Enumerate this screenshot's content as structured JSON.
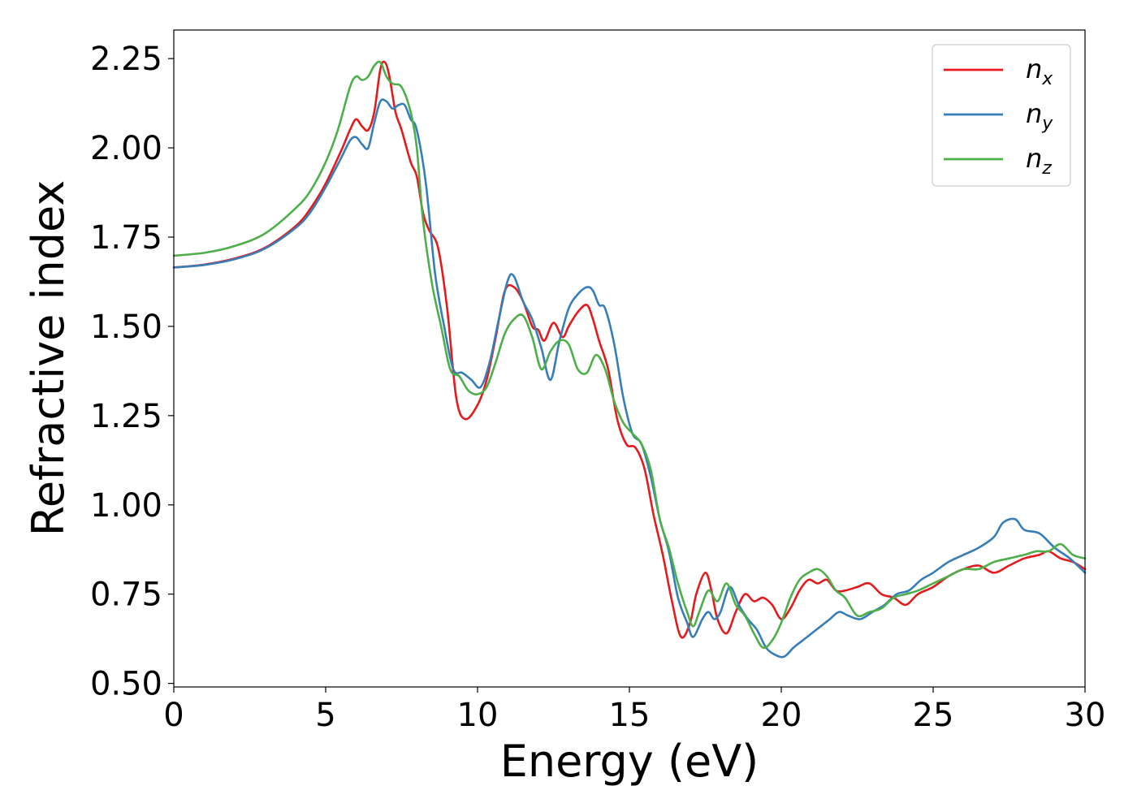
{
  "chart_data": {
    "type": "line",
    "xlabel": "Energy (eV)",
    "ylabel": "Refractive index",
    "xlim": [
      0,
      30
    ],
    "ylim": [
      0.49,
      2.33
    ],
    "xticks": [
      0,
      5,
      10,
      15,
      20,
      25,
      30
    ],
    "xtick_labels": [
      "0",
      "5",
      "10",
      "15",
      "20",
      "25",
      "30"
    ],
    "yticks": [
      0.5,
      0.75,
      1.0,
      1.25,
      1.5,
      1.75,
      2.0,
      2.25
    ],
    "ytick_labels": [
      "0.50",
      "0.75",
      "1.00",
      "1.25",
      "1.50",
      "1.75",
      "2.00",
      "2.25"
    ],
    "grid": false,
    "legend_position": "top-right",
    "series": [
      {
        "name": "n",
        "subscript": "x",
        "color": "#e41a1c",
        "x": [
          0,
          1,
          2,
          3,
          4,
          4.5,
          5,
          5.5,
          5.8,
          6.0,
          6.2,
          6.4,
          6.6,
          6.8,
          6.95,
          7.1,
          7.3,
          7.5,
          7.8,
          8.0,
          8.2,
          8.4,
          8.7,
          9.0,
          9.3,
          9.6,
          10.0,
          10.3,
          10.6,
          10.9,
          11.2,
          11.5,
          11.8,
          12.0,
          12.2,
          12.5,
          12.8,
          13.0,
          13.3,
          13.6,
          13.8,
          14.0,
          14.3,
          14.6,
          14.9,
          15.2,
          15.5,
          15.8,
          16.1,
          16.4,
          16.7,
          17.0,
          17.2,
          17.5,
          17.7,
          17.9,
          18.2,
          18.5,
          18.8,
          19.1,
          19.4,
          19.7,
          20.0,
          20.3,
          20.6,
          20.9,
          21.2,
          21.5,
          21.8,
          22.1,
          22.5,
          22.9,
          23.3,
          23.7,
          24.1,
          24.5,
          25.0,
          25.5,
          26.0,
          26.5,
          27.0,
          27.5,
          28.0,
          28.5,
          28.8,
          29.2,
          29.6,
          30.0
        ],
        "y": [
          1.665,
          1.673,
          1.69,
          1.72,
          1.78,
          1.83,
          1.9,
          1.99,
          2.05,
          2.08,
          2.06,
          2.05,
          2.1,
          2.22,
          2.24,
          2.2,
          2.1,
          2.05,
          1.96,
          1.92,
          1.82,
          1.77,
          1.72,
          1.55,
          1.3,
          1.24,
          1.28,
          1.35,
          1.47,
          1.6,
          1.61,
          1.57,
          1.5,
          1.49,
          1.46,
          1.51,
          1.47,
          1.5,
          1.54,
          1.56,
          1.52,
          1.46,
          1.38,
          1.24,
          1.17,
          1.16,
          1.1,
          0.97,
          0.86,
          0.73,
          0.63,
          0.67,
          0.75,
          0.81,
          0.76,
          0.68,
          0.64,
          0.7,
          0.75,
          0.73,
          0.74,
          0.72,
          0.68,
          0.71,
          0.76,
          0.79,
          0.78,
          0.79,
          0.76,
          0.76,
          0.77,
          0.78,
          0.75,
          0.74,
          0.72,
          0.75,
          0.77,
          0.8,
          0.82,
          0.83,
          0.81,
          0.83,
          0.85,
          0.86,
          0.87,
          0.85,
          0.84,
          0.82
        ]
      },
      {
        "name": "n",
        "subscript": "y",
        "color": "#377eb8",
        "x": [
          0,
          1,
          2,
          3,
          4,
          4.5,
          5,
          5.5,
          5.8,
          6.0,
          6.2,
          6.4,
          6.6,
          6.8,
          7.0,
          7.2,
          7.4,
          7.6,
          7.8,
          8.0,
          8.3,
          8.6,
          8.9,
          9.2,
          9.5,
          9.8,
          10.1,
          10.4,
          10.7,
          11.0,
          11.2,
          11.5,
          11.8,
          12.1,
          12.4,
          12.7,
          13.0,
          13.3,
          13.6,
          13.8,
          14.0,
          14.2,
          14.5,
          14.8,
          15.1,
          15.4,
          15.7,
          16.0,
          16.3,
          16.6,
          16.9,
          17.1,
          17.4,
          17.6,
          17.8,
          18.0,
          18.3,
          18.6,
          18.9,
          19.2,
          19.5,
          19.8,
          20.1,
          20.4,
          20.7,
          21.0,
          21.3,
          21.6,
          21.9,
          22.2,
          22.6,
          23.0,
          23.4,
          23.8,
          24.2,
          24.6,
          25.0,
          25.5,
          26.0,
          26.5,
          27.0,
          27.3,
          27.7,
          28.0,
          28.5,
          29.0,
          29.5,
          30.0
        ],
        "y": [
          1.665,
          1.672,
          1.688,
          1.718,
          1.775,
          1.82,
          1.89,
          1.97,
          2.02,
          2.03,
          2.01,
          2.0,
          2.07,
          2.13,
          2.13,
          2.11,
          2.12,
          2.12,
          2.08,
          2.05,
          1.9,
          1.65,
          1.5,
          1.38,
          1.37,
          1.35,
          1.33,
          1.4,
          1.52,
          1.63,
          1.64,
          1.57,
          1.52,
          1.44,
          1.35,
          1.46,
          1.55,
          1.59,
          1.61,
          1.6,
          1.56,
          1.55,
          1.45,
          1.3,
          1.2,
          1.17,
          1.08,
          0.96,
          0.87,
          0.74,
          0.67,
          0.63,
          0.68,
          0.7,
          0.68,
          0.7,
          0.77,
          0.72,
          0.68,
          0.65,
          0.6,
          0.58,
          0.575,
          0.6,
          0.62,
          0.64,
          0.66,
          0.68,
          0.7,
          0.69,
          0.68,
          0.7,
          0.72,
          0.75,
          0.76,
          0.79,
          0.81,
          0.84,
          0.86,
          0.88,
          0.91,
          0.95,
          0.96,
          0.93,
          0.92,
          0.88,
          0.85,
          0.81
        ]
      },
      {
        "name": "n",
        "subscript": "z",
        "color": "#4daf4a",
        "x": [
          0,
          1,
          2,
          3,
          4,
          4.5,
          5,
          5.4,
          5.8,
          6.0,
          6.2,
          6.4,
          6.6,
          6.8,
          7.0,
          7.2,
          7.5,
          7.8,
          8.0,
          8.2,
          8.5,
          8.8,
          9.1,
          9.4,
          9.7,
          10.0,
          10.3,
          10.6,
          10.9,
          11.2,
          11.5,
          11.8,
          12.1,
          12.4,
          12.7,
          13.0,
          13.3,
          13.6,
          13.9,
          14.2,
          14.5,
          14.8,
          15.1,
          15.4,
          15.7,
          16.0,
          16.3,
          16.6,
          16.9,
          17.1,
          17.3,
          17.6,
          17.9,
          18.2,
          18.5,
          18.8,
          19.1,
          19.4,
          19.7,
          20.0,
          20.3,
          20.6,
          20.9,
          21.2,
          21.5,
          21.8,
          22.1,
          22.5,
          22.9,
          23.3,
          23.7,
          24.1,
          24.5,
          25.0,
          25.5,
          26.0,
          26.5,
          27.0,
          27.5,
          28.0,
          28.4,
          28.8,
          29.2,
          29.6,
          30.0
        ],
        "y": [
          1.698,
          1.706,
          1.725,
          1.76,
          1.83,
          1.88,
          1.96,
          2.05,
          2.17,
          2.2,
          2.19,
          2.2,
          2.23,
          2.24,
          2.2,
          2.18,
          2.17,
          2.1,
          2.0,
          1.8,
          1.62,
          1.5,
          1.38,
          1.36,
          1.32,
          1.31,
          1.33,
          1.4,
          1.48,
          1.52,
          1.53,
          1.47,
          1.38,
          1.43,
          1.46,
          1.45,
          1.38,
          1.37,
          1.42,
          1.38,
          1.29,
          1.23,
          1.2,
          1.17,
          1.1,
          0.96,
          0.88,
          0.78,
          0.7,
          0.66,
          0.7,
          0.76,
          0.73,
          0.78,
          0.72,
          0.69,
          0.64,
          0.6,
          0.62,
          0.67,
          0.74,
          0.79,
          0.81,
          0.82,
          0.8,
          0.76,
          0.74,
          0.69,
          0.7,
          0.71,
          0.74,
          0.75,
          0.76,
          0.78,
          0.8,
          0.82,
          0.82,
          0.84,
          0.85,
          0.86,
          0.87,
          0.87,
          0.89,
          0.86,
          0.85
        ]
      }
    ]
  }
}
